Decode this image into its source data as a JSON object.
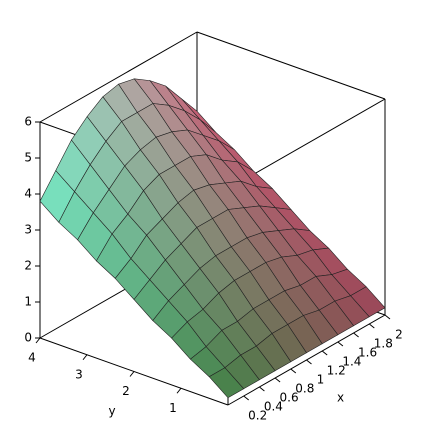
{
  "chart_data": {
    "type": "surface",
    "xlabel": "x",
    "ylabel": "y",
    "x": [
      0,
      0.2,
      0.4,
      0.6,
      0.8,
      1,
      1.2,
      1.4,
      1.6,
      1.8,
      2
    ],
    "y": [
      0,
      0.4,
      0.8,
      1.2,
      1.6,
      2,
      2.4,
      2.8,
      3.2,
      3.6,
      4
    ],
    "z": [
      [
        0.2,
        0.2,
        0.2,
        0.2,
        0.2,
        0.2,
        0.2,
        0.2,
        0.2,
        0.2,
        0.2
      ],
      [
        0.6,
        0.6,
        0.7,
        0.7,
        0.8,
        0.8,
        0.8,
        0.7,
        0.7,
        0.6,
        0.6
      ],
      [
        0.9,
        1.0,
        1.2,
        1.2,
        1.3,
        1.3,
        1.3,
        1.2,
        1.2,
        1.0,
        0.9
      ],
      [
        1.3,
        1.5,
        1.6,
        1.8,
        1.9,
        1.9,
        1.9,
        1.8,
        1.6,
        1.5,
        1.3
      ],
      [
        1.6,
        1.9,
        2.1,
        2.3,
        2.4,
        2.4,
        2.4,
        2.3,
        2.1,
        1.9,
        1.6
      ],
      [
        2.0,
        2.3,
        2.6,
        2.8,
        3.0,
        3.0,
        3.0,
        2.8,
        2.6,
        2.3,
        2.0
      ],
      [
        2.4,
        2.7,
        3.1,
        3.3,
        3.5,
        3.6,
        3.5,
        3.3,
        3.1,
        2.7,
        2.4
      ],
      [
        2.7,
        3.2,
        3.5,
        3.9,
        4.1,
        4.1,
        4.1,
        3.9,
        3.5,
        3.2,
        2.7
      ],
      [
        3.1,
        3.6,
        4.0,
        4.4,
        4.6,
        4.7,
        4.6,
        4.4,
        4.0,
        3.6,
        3.1
      ],
      [
        3.4,
        4.0,
        4.5,
        4.9,
        5.2,
        5.2,
        5.2,
        4.9,
        4.5,
        4.0,
        3.4
      ],
      [
        3.8,
        4.4,
        5.0,
        5.4,
        5.7,
        5.8,
        5.7,
        5.4,
        5.0,
        4.4,
        3.8
      ]
    ],
    "xlim": [
      0,
      2
    ],
    "ylim": [
      0,
      4
    ],
    "zlim": [
      0,
      6
    ],
    "xticks": [
      0.2,
      0.4,
      0.6,
      0.8,
      1,
      1.2,
      1.4,
      1.6,
      1.8,
      2
    ],
    "yticks": [
      1,
      2,
      3,
      4
    ],
    "zticks": [
      0,
      1,
      2,
      3,
      4,
      5,
      6
    ],
    "colors": [
      "#5cb060",
      "#80ffd8",
      "#d8607a"
    ]
  }
}
